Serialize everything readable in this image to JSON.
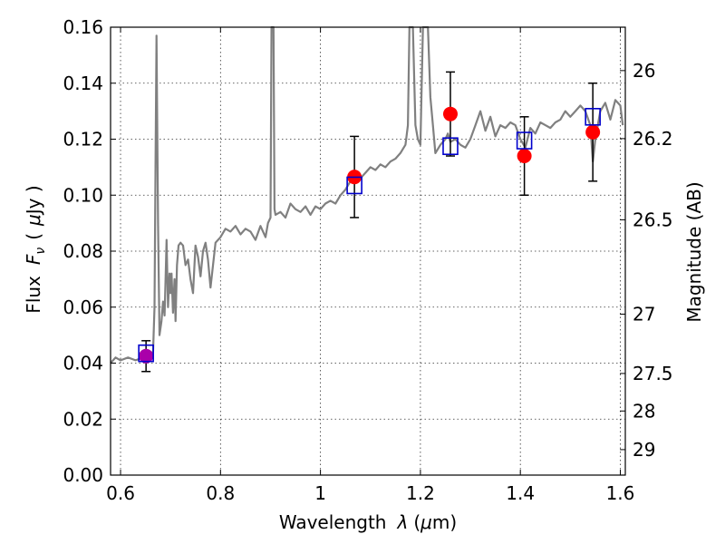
{
  "chart_data": {
    "type": "scatter",
    "xlabel": "Wavelength",
    "xlabel_symbol": "λ",
    "xlabel_unit_open": "(",
    "xlabel_unit_mu": "μ",
    "xlabel_unit_rest": "m)",
    "ylabel": "Flux",
    "ylabel_symbol_main": "F",
    "ylabel_symbol_sub": "ν",
    "ylabel_unit_open": "(",
    "ylabel_unit_mu": "μ",
    "ylabel_unit_rest": "Jy )",
    "y2label": "Magnitude (AB)",
    "xlim": [
      0.58,
      1.61
    ],
    "ylim": [
      0.0,
      0.16
    ],
    "grid": true,
    "x_ticks": [
      {
        "value": 0.6,
        "label": "0.6"
      },
      {
        "value": 0.8,
        "label": "0.8"
      },
      {
        "value": 1.0,
        "label": "1"
      },
      {
        "value": 1.2,
        "label": "1.2"
      },
      {
        "value": 1.4,
        "label": "1.4"
      },
      {
        "value": 1.6,
        "label": "1.6"
      }
    ],
    "y_ticks": [
      {
        "value": 0.0,
        "label": "0.00"
      },
      {
        "value": 0.02,
        "label": "0.02"
      },
      {
        "value": 0.04,
        "label": "0.04"
      },
      {
        "value": 0.06,
        "label": "0.06"
      },
      {
        "value": 0.08,
        "label": "0.08"
      },
      {
        "value": 0.1,
        "label": "0.10"
      },
      {
        "value": 0.12,
        "label": "0.12"
      },
      {
        "value": 0.14,
        "label": "0.14"
      },
      {
        "value": 0.16,
        "label": "0.16"
      }
    ],
    "y2_ticks": [
      {
        "flux": 0.1445,
        "label": "26"
      },
      {
        "flux": 0.1202,
        "label": "26.2"
      },
      {
        "flux": 0.0912,
        "label": "26.5"
      },
      {
        "flux": 0.0575,
        "label": "27"
      },
      {
        "flux": 0.0363,
        "label": "27.5"
      },
      {
        "flux": 0.0229,
        "label": "28"
      },
      {
        "flux": 0.0091,
        "label": "29"
      }
    ],
    "series": [
      {
        "name": "model_spectrum",
        "style": "line",
        "color": "#808080",
        "x": [
          0.58,
          0.59,
          0.6,
          0.615,
          0.63,
          0.645,
          0.655,
          0.665,
          0.668,
          0.67,
          0.672,
          0.675,
          0.678,
          0.682,
          0.685,
          0.688,
          0.69,
          0.692,
          0.695,
          0.698,
          0.7,
          0.702,
          0.705,
          0.708,
          0.71,
          0.713,
          0.716,
          0.72,
          0.725,
          0.73,
          0.735,
          0.74,
          0.745,
          0.75,
          0.755,
          0.76,
          0.765,
          0.77,
          0.775,
          0.78,
          0.79,
          0.8,
          0.81,
          0.82,
          0.83,
          0.84,
          0.85,
          0.86,
          0.87,
          0.88,
          0.89,
          0.895,
          0.9,
          0.902,
          0.904,
          0.906,
          0.908,
          0.91,
          0.92,
          0.93,
          0.94,
          0.95,
          0.96,
          0.97,
          0.98,
          0.99,
          1.0,
          1.01,
          1.02,
          1.03,
          1.04,
          1.05,
          1.06,
          1.07,
          1.08,
          1.09,
          1.1,
          1.11,
          1.12,
          1.13,
          1.14,
          1.15,
          1.16,
          1.17,
          1.175,
          1.178,
          1.18,
          1.185,
          1.19,
          1.195,
          1.2,
          1.205,
          1.21,
          1.215,
          1.22,
          1.225,
          1.23,
          1.24,
          1.25,
          1.255,
          1.26,
          1.27,
          1.28,
          1.29,
          1.3,
          1.31,
          1.32,
          1.33,
          1.34,
          1.35,
          1.36,
          1.37,
          1.38,
          1.39,
          1.4,
          1.41,
          1.42,
          1.43,
          1.44,
          1.45,
          1.46,
          1.47,
          1.48,
          1.49,
          1.5,
          1.51,
          1.52,
          1.53,
          1.54,
          1.545,
          1.55,
          1.56,
          1.57,
          1.58,
          1.59,
          1.6,
          1.605
        ],
        "y": [
          0.04,
          0.042,
          0.041,
          0.042,
          0.041,
          0.042,
          0.043,
          0.044,
          0.06,
          0.11,
          0.157,
          0.09,
          0.05,
          0.055,
          0.062,
          0.057,
          0.07,
          0.084,
          0.06,
          0.072,
          0.065,
          0.072,
          0.058,
          0.07,
          0.055,
          0.075,
          0.082,
          0.083,
          0.082,
          0.075,
          0.077,
          0.07,
          0.065,
          0.082,
          0.078,
          0.071,
          0.08,
          0.083,
          0.077,
          0.067,
          0.083,
          0.085,
          0.088,
          0.087,
          0.089,
          0.086,
          0.088,
          0.087,
          0.084,
          0.089,
          0.085,
          0.09,
          0.092,
          0.16,
          0.16,
          0.16,
          0.095,
          0.093,
          0.094,
          0.092,
          0.097,
          0.095,
          0.094,
          0.096,
          0.093,
          0.096,
          0.095,
          0.097,
          0.098,
          0.097,
          0.1,
          0.102,
          0.105,
          0.107,
          0.106,
          0.108,
          0.11,
          0.109,
          0.111,
          0.11,
          0.112,
          0.113,
          0.115,
          0.118,
          0.125,
          0.16,
          0.16,
          0.16,
          0.125,
          0.12,
          0.118,
          0.16,
          0.16,
          0.16,
          0.135,
          0.125,
          0.115,
          0.118,
          0.12,
          0.122,
          0.119,
          0.12,
          0.118,
          0.117,
          0.12,
          0.125,
          0.13,
          0.123,
          0.128,
          0.121,
          0.125,
          0.124,
          0.126,
          0.125,
          0.12,
          0.117,
          0.124,
          0.122,
          0.126,
          0.125,
          0.124,
          0.126,
          0.127,
          0.13,
          0.128,
          0.13,
          0.132,
          0.13,
          0.125,
          0.112,
          0.12,
          0.13,
          0.133,
          0.127,
          0.134,
          0.132,
          0.125
        ]
      },
      {
        "name": "observed",
        "style": "points",
        "marker": "circle",
        "color": "#ff0000",
        "x": [
          0.651,
          1.068,
          1.26,
          1.408,
          1.545
        ],
        "y": [
          0.0425,
          0.1065,
          0.129,
          0.114,
          0.1225
        ],
        "yerr": [
          0.0055,
          0.0145,
          0.015,
          0.014,
          0.0175
        ],
        "first_point_color": "#aa00aa"
      },
      {
        "name": "model_photometry",
        "style": "points",
        "marker": "open-square",
        "color": "#0000cc",
        "x": [
          0.651,
          1.068,
          1.26,
          1.408,
          1.545
        ],
        "y": [
          0.0435,
          0.1035,
          0.1175,
          0.1195,
          0.128
        ]
      }
    ]
  }
}
